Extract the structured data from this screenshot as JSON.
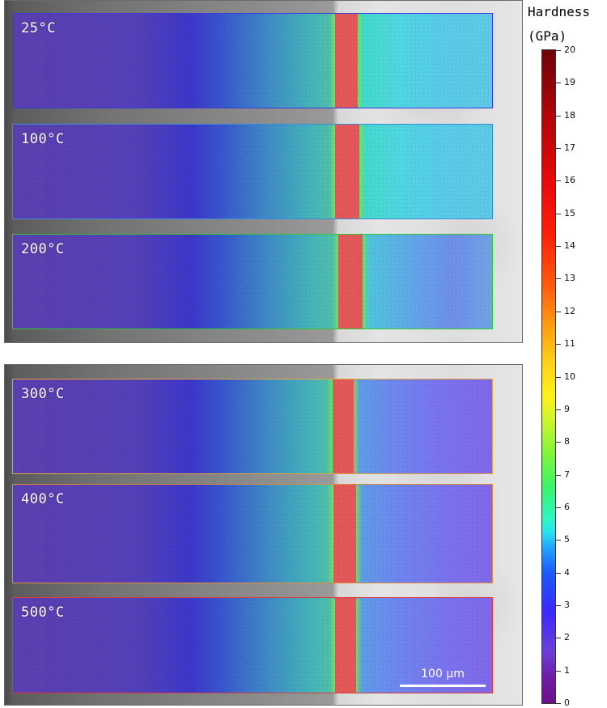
{
  "figure": {
    "scale_bar": {
      "label": "100 µm"
    },
    "panels": [
      {
        "label": "25°C",
        "border_color": "#3a3adc"
      },
      {
        "label": "100°C",
        "border_color": "#3a8ad8"
      },
      {
        "label": "200°C",
        "border_color": "#32c832"
      },
      {
        "label": "300°C",
        "border_color": "#e6a23a"
      },
      {
        "label": "400°C",
        "border_color": "#e08a3a"
      },
      {
        "label": "500°C",
        "border_color": "#dd3a3a"
      }
    ],
    "colorbar": {
      "title_line1": "Hardness",
      "title_line2": "(GPa)",
      "min": 0,
      "max": 20,
      "ticks": [
        "0",
        "1",
        "2",
        "3",
        "4",
        "5",
        "6",
        "7",
        "8",
        "9",
        "10",
        "11",
        "12",
        "13",
        "14",
        "15",
        "16",
        "17",
        "18",
        "19",
        "20"
      ]
    }
  }
}
